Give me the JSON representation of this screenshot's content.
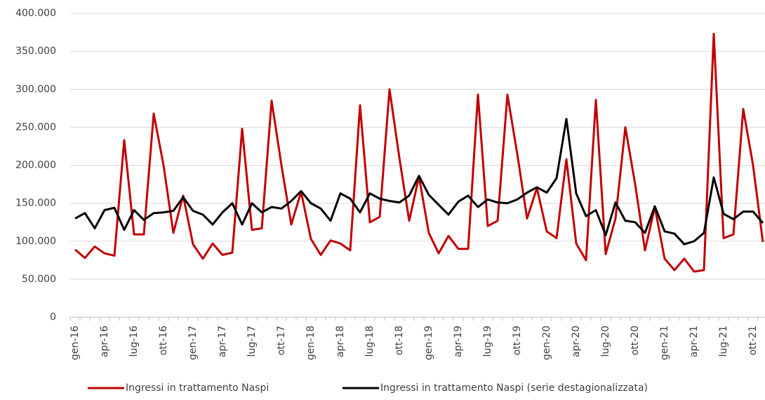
{
  "chart_data": {
    "type": "line",
    "categories": [
      "gen-16",
      null,
      null,
      "apr-16",
      null,
      null,
      "lug-16",
      null,
      null,
      "ott-16",
      null,
      null,
      "gen-17",
      null,
      null,
      "apr-17",
      null,
      null,
      "lug-17",
      null,
      null,
      "ott-17",
      null,
      null,
      "gen-18",
      null,
      null,
      "apr-18",
      null,
      null,
      "lug-18",
      null,
      null,
      "ott-18",
      null,
      null,
      "gen-19",
      null,
      null,
      "apr-19",
      null,
      null,
      "lug-19",
      null,
      null,
      "ott-19",
      null,
      null,
      "gen-20",
      null,
      null,
      "apr-20",
      null,
      null,
      "lug-20",
      null,
      null,
      "ott-20",
      null,
      null,
      "gen-21",
      null,
      null,
      "apr-21",
      null,
      null,
      "lug-21",
      null,
      null,
      "ott-21",
      null
    ],
    "series": [
      {
        "name": "Ingressi in trattamento Naspi",
        "color": "#c00000",
        "values": [
          89000,
          78000,
          93000,
          84000,
          81000,
          233000,
          109000,
          109000,
          268000,
          200000,
          111000,
          160000,
          96000,
          77000,
          97000,
          82000,
          85000,
          248000,
          115000,
          117000,
          285000,
          200000,
          122000,
          165000,
          103000,
          82000,
          101000,
          97000,
          88000,
          279000,
          125000,
          132000,
          300000,
          210000,
          127000,
          185000,
          111000,
          84000,
          107000,
          90000,
          90000,
          293000,
          120000,
          127000,
          293000,
          215000,
          130000,
          170000,
          113000,
          104000,
          208000,
          97000,
          75000,
          286000,
          83000,
          130000,
          250000,
          175000,
          88000,
          145000,
          77000,
          62000,
          77000,
          60000,
          62000,
          373000,
          104000,
          109000,
          274000,
          200000,
          99000
        ]
      },
      {
        "name": "Ingressi in trattamento Naspi (serie destagionalizzata)",
        "color": "#000000",
        "values": [
          130000,
          137000,
          117000,
          141000,
          144000,
          115000,
          141000,
          128000,
          137000,
          138000,
          140000,
          158000,
          140000,
          135000,
          122000,
          138000,
          150000,
          122000,
          150000,
          138000,
          145000,
          143000,
          153000,
          166000,
          150000,
          143000,
          127000,
          163000,
          156000,
          138000,
          163000,
          156000,
          153000,
          151000,
          160000,
          186000,
          161000,
          148000,
          135000,
          152000,
          160000,
          145000,
          155000,
          151000,
          150000,
          155000,
          164000,
          171000,
          164000,
          183000,
          261000,
          163000,
          133000,
          141000,
          108000,
          151000,
          127000,
          125000,
          111000,
          146000,
          113000,
          110000,
          96000,
          100000,
          111000,
          184000,
          136000,
          129000,
          139000,
          139000,
          124000
        ]
      }
    ],
    "ylim": [
      0,
      400000
    ],
    "yticks": [
      0,
      {
        "value": 50000,
        "label": "50.000"
      },
      {
        "value": 100000,
        "label": "100.000"
      },
      {
        "value": 150000,
        "label": "150.000"
      },
      {
        "value": 200000,
        "label": "200.000"
      },
      {
        "value": 250000,
        "label": "250.000"
      },
      {
        "value": 300000,
        "label": "300.000"
      },
      {
        "value": 350000,
        "label": "350.000"
      },
      {
        "value": 400000,
        "label": "400.000"
      }
    ],
    "grid": true,
    "legend": "bottom"
  }
}
